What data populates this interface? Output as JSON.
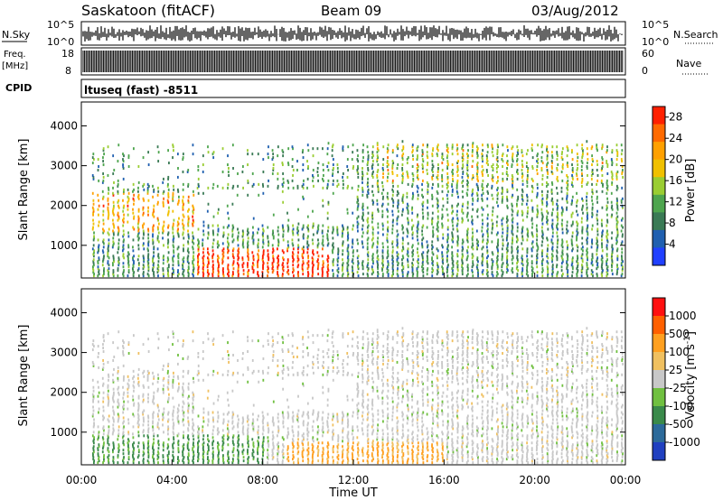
{
  "header": {
    "station": "Saskatoon (fitACF)",
    "beam": "Beam 09",
    "date": "03/Aug/2012"
  },
  "top_panels": {
    "nsky_label": "N.Sky",
    "nsearch_label": "N.Search",
    "nsky_ticks_left": [
      "10^5",
      "10^0"
    ],
    "nsky_ticks_right": [
      "10^5",
      "10^0"
    ],
    "freq_label_line1": "Freq.",
    "freq_label_line2": "[MHz]",
    "freq_ticks": [
      "18",
      "8"
    ],
    "nave_label": "Nave",
    "nave_ticks": [
      "60",
      "0"
    ],
    "cpid_label": "CPID",
    "cpid_value": "ltuseq (fast) -8511"
  },
  "chart_data": [
    {
      "type": "heatmap",
      "ylabel": "Slant Range [km]",
      "xlabel": "Time UT",
      "x_ticks": [
        "00:00",
        "04:00",
        "08:00",
        "12:00",
        "16:00",
        "20:00",
        "00:00"
      ],
      "x_range_hours": [
        0,
        24
      ],
      "y_ticks": [
        "1000",
        "2000",
        "3000",
        "4000"
      ],
      "y_range_km": [
        180,
        4600
      ],
      "colorbar_label": "Power [dB]",
      "colorbar_ticks": [
        "4",
        "8",
        "12",
        "16",
        "20",
        "24",
        "28"
      ],
      "colorbar_range": [
        0,
        30
      ],
      "colors": [
        "#2040ff",
        "#2060b0",
        "#3a7a55",
        "#4ea54e",
        "#9acd32",
        "#f0c000",
        "#ffa000",
        "#ff6a00",
        "#ff2000"
      ]
    },
    {
      "type": "heatmap",
      "ylabel": "Slant Range [km]",
      "xlabel": "Time UT",
      "x_ticks": [
        "00:00",
        "04:00",
        "08:00",
        "12:00",
        "16:00",
        "20:00",
        "00:00"
      ],
      "x_range_hours": [
        0,
        24
      ],
      "y_ticks": [
        "1000",
        "2000",
        "3000",
        "4000"
      ],
      "y_range_km": [
        180,
        4600
      ],
      "colorbar_label": "Velocity [m s^-1]",
      "colorbar_ticks": [
        "1000",
        "500",
        "100",
        "25",
        "-25",
        "-100",
        "-500",
        "-1000"
      ],
      "colors": [
        "#2040c0",
        "#2c6a9a",
        "#3a8a4a",
        "#70c040",
        "#c8c8c8",
        "#f0c060",
        "#ffa020",
        "#ff6000",
        "#ff1010"
      ]
    }
  ]
}
